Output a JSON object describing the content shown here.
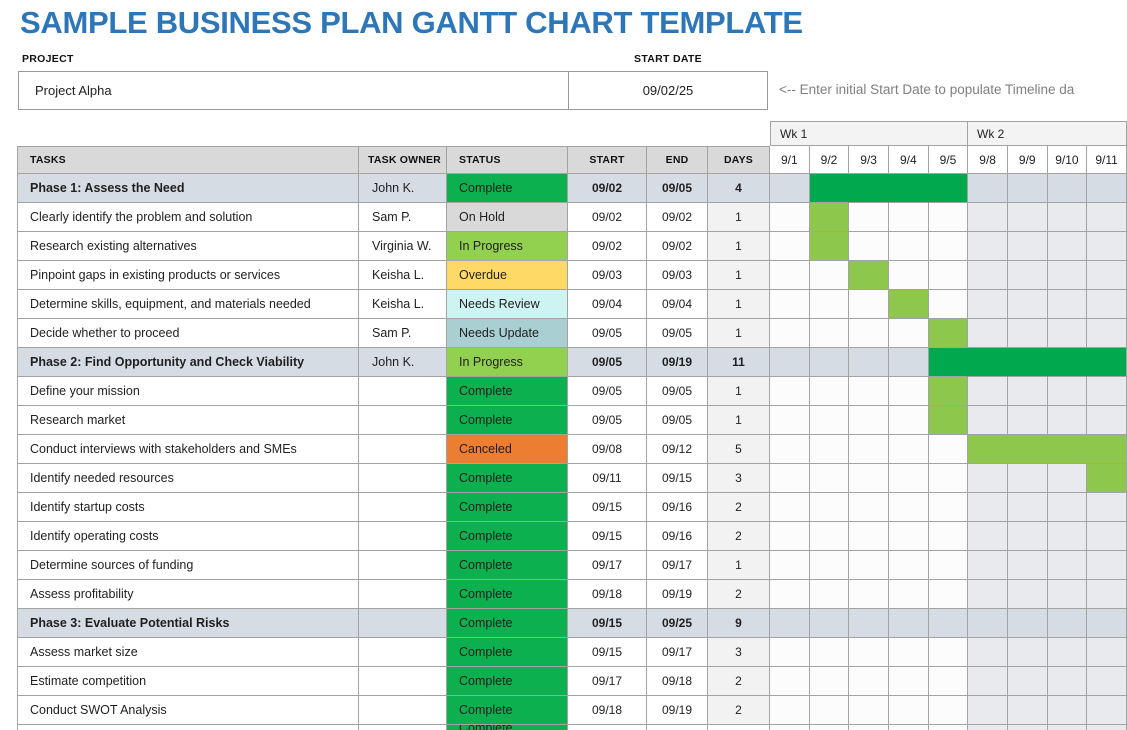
{
  "title": "SAMPLE BUSINESS PLAN GANTT CHART TEMPLATE",
  "project": {
    "label": "PROJECT",
    "value": "Project Alpha"
  },
  "start_date": {
    "label": "START DATE",
    "value": "09/02/25"
  },
  "note": "<-- Enter initial Start Date to populate Timeline da",
  "timeline": {
    "weeks": [
      {
        "label": "Wk 1",
        "span": 5
      },
      {
        "label": "Wk 2",
        "span": 4
      }
    ],
    "days": [
      "9/1",
      "9/2",
      "9/3",
      "9/4",
      "9/5",
      "9/8",
      "9/9",
      "9/10",
      "9/11"
    ],
    "week2_start_index": 5
  },
  "table": {
    "headers": [
      "TASKS",
      "TASK OWNER",
      "STATUS",
      "START",
      "END",
      "DAYS"
    ],
    "rows": [
      {
        "task": "Phase 1: Assess the Need",
        "owner": "John K.",
        "status": "Complete",
        "start": "09/02",
        "end": "09/05",
        "days": "4",
        "phase": true,
        "bar": {
          "from": 1,
          "to": 4,
          "type": "dark"
        }
      },
      {
        "task": "Clearly identify the problem and solution",
        "owner": "Sam P.",
        "status": "On Hold",
        "start": "09/02",
        "end": "09/02",
        "days": "1",
        "phase": false,
        "bar": {
          "from": 1,
          "to": 1,
          "type": "light"
        }
      },
      {
        "task": "Research existing alternatives",
        "owner": "Virginia W.",
        "status": "In Progress",
        "start": "09/02",
        "end": "09/02",
        "days": "1",
        "phase": false,
        "bar": {
          "from": 1,
          "to": 1,
          "type": "light"
        }
      },
      {
        "task": "Pinpoint gaps in existing products or services",
        "owner": "Keisha L.",
        "status": "Overdue",
        "start": "09/03",
        "end": "09/03",
        "days": "1",
        "phase": false,
        "bar": {
          "from": 2,
          "to": 2,
          "type": "light"
        }
      },
      {
        "task": "Determine skills, equipment, and materials needed",
        "owner": "Keisha L.",
        "status": "Needs Review",
        "start": "09/04",
        "end": "09/04",
        "days": "1",
        "phase": false,
        "bar": {
          "from": 3,
          "to": 3,
          "type": "light"
        }
      },
      {
        "task": "Decide whether to proceed",
        "owner": "Sam P.",
        "status": "Needs Update",
        "start": "09/05",
        "end": "09/05",
        "days": "1",
        "phase": false,
        "bar": {
          "from": 4,
          "to": 4,
          "type": "light"
        }
      },
      {
        "task": "Phase 2: Find Opportunity and Check Viability",
        "owner": "John K.",
        "status": "In Progress",
        "start": "09/05",
        "end": "09/19",
        "days": "11",
        "phase": true,
        "bar": {
          "from": 4,
          "to": 8,
          "type": "dark"
        }
      },
      {
        "task": "Define your mission",
        "owner": "",
        "status": "Complete",
        "start": "09/05",
        "end": "09/05",
        "days": "1",
        "phase": false,
        "bar": {
          "from": 4,
          "to": 4,
          "type": "light"
        }
      },
      {
        "task": "Research market",
        "owner": "",
        "status": "Complete",
        "start": "09/05",
        "end": "09/05",
        "days": "1",
        "phase": false,
        "bar": {
          "from": 4,
          "to": 4,
          "type": "light"
        }
      },
      {
        "task": "Conduct interviews with stakeholders and SMEs",
        "owner": "",
        "status": "Canceled",
        "start": "09/08",
        "end": "09/12",
        "days": "5",
        "phase": false,
        "bar": {
          "from": 5,
          "to": 8,
          "type": "light"
        }
      },
      {
        "task": "Identify needed resources",
        "owner": "",
        "status": "Complete",
        "start": "09/11",
        "end": "09/15",
        "days": "3",
        "phase": false,
        "bar": {
          "from": 8,
          "to": 8,
          "type": "light"
        }
      },
      {
        "task": "Identify startup costs",
        "owner": "",
        "status": "Complete",
        "start": "09/15",
        "end": "09/16",
        "days": "2",
        "phase": false,
        "bar": null
      },
      {
        "task": "Identify operating costs",
        "owner": "",
        "status": "Complete",
        "start": "09/15",
        "end": "09/16",
        "days": "2",
        "phase": false,
        "bar": null
      },
      {
        "task": "Determine sources of funding",
        "owner": "",
        "status": "Complete",
        "start": "09/17",
        "end": "09/17",
        "days": "1",
        "phase": false,
        "bar": null
      },
      {
        "task": "Assess profitability",
        "owner": "",
        "status": "Complete",
        "start": "09/18",
        "end": "09/19",
        "days": "2",
        "phase": false,
        "bar": null
      },
      {
        "task": "Phase 3: Evaluate Potential Risks",
        "owner": "",
        "status": "Complete",
        "start": "09/15",
        "end": "09/25",
        "days": "9",
        "phase": true,
        "bar": null
      },
      {
        "task": "Assess market size",
        "owner": "",
        "status": "Complete",
        "start": "09/15",
        "end": "09/17",
        "days": "3",
        "phase": false,
        "bar": null
      },
      {
        "task": "Estimate competition",
        "owner": "",
        "status": "Complete",
        "start": "09/17",
        "end": "09/18",
        "days": "2",
        "phase": false,
        "bar": null
      },
      {
        "task": "Conduct SWOT Analysis",
        "owner": "",
        "status": "Complete",
        "start": "09/18",
        "end": "09/19",
        "days": "2",
        "phase": false,
        "bar": null
      },
      {
        "task": "",
        "owner": "",
        "status": "Complete",
        "start": "",
        "end": "",
        "days": "",
        "phase": false,
        "partial": true,
        "bar": null
      }
    ]
  },
  "status_colors": {
    "Complete": "#0DB04E",
    "On Hold": "#D9D9D9",
    "In Progress": "#92D050",
    "Overdue": "#FFD966",
    "Needs Review": "#CDF4F2",
    "Needs Update": "#A9CFD2",
    "Canceled": "#ED7D31"
  },
  "colors": {
    "title_blue": "#2D76B8",
    "grid_line": "#A3A3A3",
    "grid_dash": "#BDBDBD",
    "form_border": "#999999",
    "header_bg": "#D9D9D9",
    "phase_row_bg": "#D6DCE4",
    "band_bg": "#F3F3F3",
    "day_header_bg": "#FBFBFB",
    "wk1_cell_bg": "#FCFCFC",
    "wk2_cell_bg": "#E8EAEE",
    "days_cell_bg": "#F2F2F2",
    "note_gray": "#7F7F7F",
    "bar_dark": "#00A84E",
    "bar_light": "#8DC74B"
  }
}
